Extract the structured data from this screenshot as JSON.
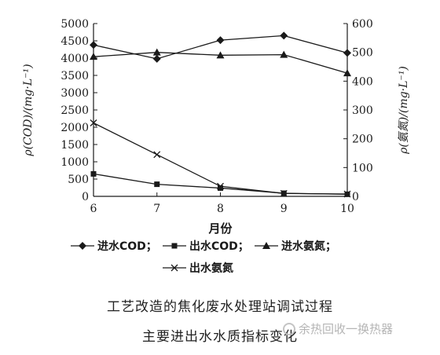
{
  "chart_data": {
    "type": "line",
    "x": [
      6,
      7,
      8,
      9,
      10
    ],
    "xticks": [
      "6",
      "7",
      "8",
      "9",
      "10"
    ],
    "xlabel": "月份",
    "xlim": [
      6,
      10
    ],
    "left_axis": {
      "ylabel": "ρ(COD)/(mg·L⁻¹)",
      "ylim": [
        0,
        5000
      ],
      "ticks": [
        "0",
        "500",
        "1000",
        "1500",
        "2000",
        "2500",
        "3000",
        "3500",
        "4000",
        "4500",
        "5000"
      ]
    },
    "right_axis": {
      "ylabel": "ρ(氨氮)/(mg·L⁻¹)",
      "ylim": [
        0,
        600
      ],
      "ticks": [
        "0",
        "100",
        "200",
        "300",
        "400",
        "500",
        "600"
      ]
    },
    "series": [
      {
        "name": "进水COD；",
        "axis": "left",
        "marker": "diamond",
        "values": [
          4380,
          3980,
          4520,
          4650,
          4150
        ]
      },
      {
        "name": "出水COD；",
        "axis": "left",
        "marker": "square",
        "values": [
          650,
          350,
          240,
          90,
          60
        ]
      },
      {
        "name": "进水氨氮；",
        "axis": "right",
        "marker": "triangle",
        "values": [
          485,
          500,
          490,
          492,
          428
        ]
      },
      {
        "name": "出水氨氮",
        "axis": "right",
        "marker": "x",
        "values": [
          255,
          145,
          35,
          10,
          8
        ]
      }
    ],
    "grid": false,
    "legend_position": "bottom"
  },
  "caption": {
    "line1": "工艺改造的焦化废水处理站调试过程",
    "line2": "主要进出水水质指标变化"
  },
  "watermark": {
    "text": "余热回收一换热器"
  }
}
